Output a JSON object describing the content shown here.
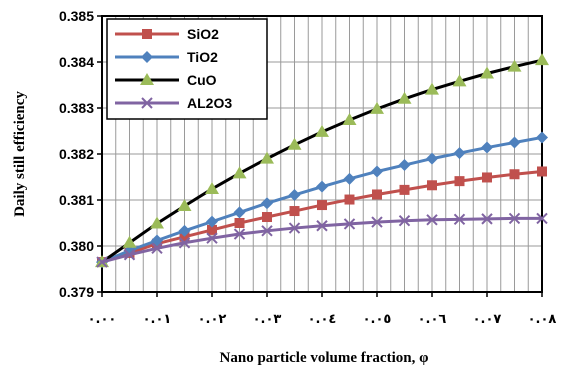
{
  "chart_data": {
    "type": "line",
    "title": "",
    "xlabel": "Nano particle volume fraction, φ",
    "ylabel": "Daily still efficiency",
    "xlim": [
      0,
      0.08
    ],
    "ylim": [
      0.379,
      0.385
    ],
    "grid": true,
    "legend_position": "top-left",
    "x_ticks": [
      0,
      0.01,
      0.02,
      0.03,
      0.04,
      0.05,
      0.06,
      0.07,
      0.08
    ],
    "x_tick_labels": [
      "٠.٠٠",
      "٠.٠١",
      "٠.٠٢",
      "٠.٠٣",
      "٠.٠٤",
      "٠.٠٥",
      "٠.٠٦",
      "٠.٠٧",
      "٠.٠٨"
    ],
    "y_ticks": [
      0.379,
      0.38,
      0.381,
      0.382,
      0.383,
      0.384,
      0.385
    ],
    "y_tick_labels": [
      "0.379",
      "0.380",
      "0.381",
      "0.382",
      "0.383",
      "0.384",
      "0.385"
    ],
    "x": [
      0,
      0.005,
      0.01,
      0.015,
      0.02,
      0.025,
      0.03,
      0.035,
      0.04,
      0.045,
      0.05,
      0.055,
      0.06,
      0.065,
      0.07,
      0.075,
      0.08
    ],
    "series": [
      {
        "name": "SiO2",
        "color": "#C0504D",
        "marker": "square",
        "values": [
          0.37965,
          0.37985,
          0.38005,
          0.3802,
          0.38035,
          0.3805,
          0.38063,
          0.38076,
          0.38089,
          0.38101,
          0.38112,
          0.38122,
          0.38132,
          0.38141,
          0.38149,
          0.38156,
          0.38162
        ]
      },
      {
        "name": "TiO2",
        "color": "#4F81BD",
        "marker": "diamond",
        "values": [
          0.37965,
          0.3799,
          0.38012,
          0.38033,
          0.38053,
          0.38073,
          0.38093,
          0.38111,
          0.38129,
          0.38146,
          0.38162,
          0.38176,
          0.3819,
          0.38202,
          0.38214,
          0.38225,
          0.38236
        ]
      },
      {
        "name": "CuO",
        "color": "#000000",
        "marker": "triangle",
        "marker_color": "#9BBB59",
        "values": [
          0.37965,
          0.38007,
          0.38049,
          0.38087,
          0.38124,
          0.38158,
          0.3819,
          0.3822,
          0.38248,
          0.38274,
          0.38298,
          0.3832,
          0.3834,
          0.38358,
          0.38375,
          0.3839,
          0.38404
        ]
      },
      {
        "name": "AL2O3",
        "color": "#8064A2",
        "marker": "x",
        "values": [
          0.37965,
          0.37981,
          0.37995,
          0.38007,
          0.38017,
          0.38026,
          0.38033,
          0.38039,
          0.38044,
          0.38048,
          0.38052,
          0.38055,
          0.38057,
          0.38058,
          0.38059,
          0.3806,
          0.3806
        ]
      }
    ]
  }
}
